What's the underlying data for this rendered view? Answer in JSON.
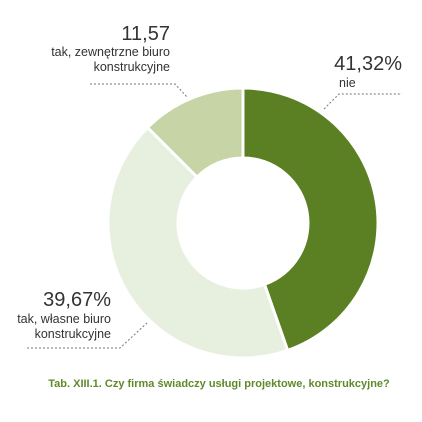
{
  "chart_data": {
    "type": "pie",
    "variant": "donut",
    "title": "Tab. XIII.1. Czy firma świadczy usługi projektowe, konstrukcyjne?",
    "slices": [
      {
        "label": "nie",
        "value": 41.32,
        "display": "41,32%",
        "color": "#5b7f23"
      },
      {
        "label_lines": [
          "tak, własne biuro",
          "konstrukcyjne"
        ],
        "value": 39.67,
        "display": "39,67%",
        "color": "#e7efdf"
      },
      {
        "label_lines": [
          "tak, zewnętrzne biuro",
          "konstrukcyjne"
        ],
        "value": 11.57,
        "display": "11,57",
        "color": "#c6d4a6"
      }
    ],
    "colors": {
      "caption": "#5f8a2a",
      "text": "#333333",
      "leader": "#777777"
    }
  }
}
